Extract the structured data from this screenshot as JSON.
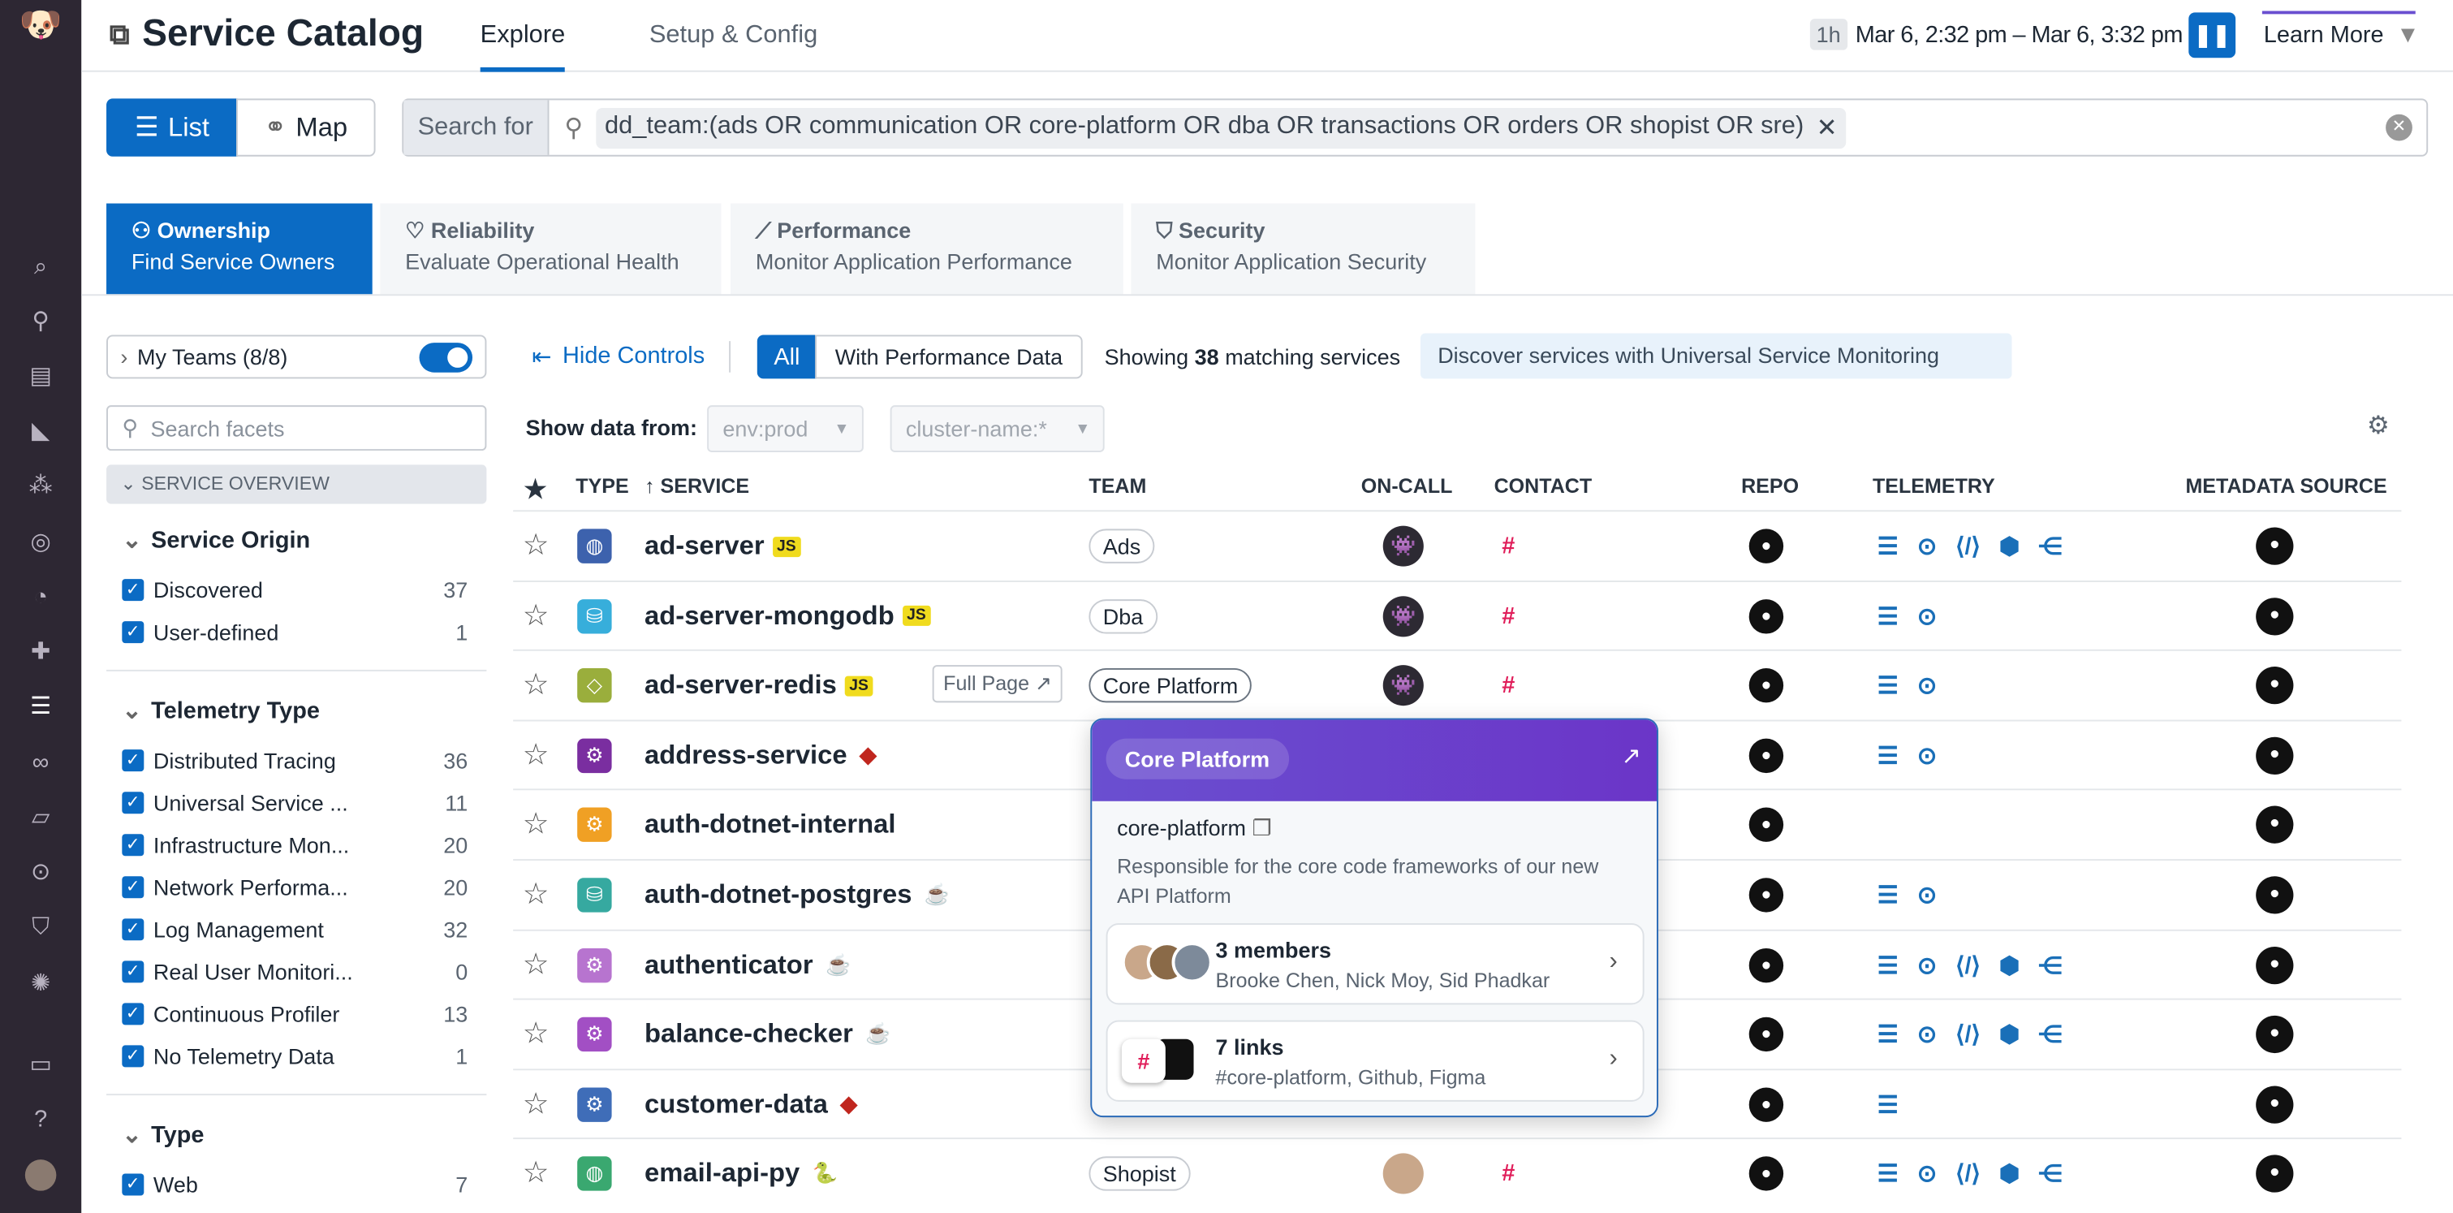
{
  "nav": {
    "icons": [
      "datadog-logo",
      "search-icon",
      "binoculars-icon",
      "list-icon",
      "chart-icon",
      "services-icon",
      "target-icon",
      "gauge-icon",
      "puzzle-icon",
      "traces-icon",
      "link-icon",
      "book-icon",
      "usm-icon",
      "shield-icon",
      "cog-icon",
      "chat-icon",
      "help-icon",
      "user-avatar"
    ]
  },
  "header": {
    "title": "Service Catalog",
    "tabs": [
      "Explore",
      "Setup & Config"
    ],
    "time_badge": "1h",
    "time_range": "Mar 6, 2:32 pm – Mar 6, 3:32 pm",
    "learn_more": "Learn More"
  },
  "view": {
    "list": "List",
    "map": "Map"
  },
  "search": {
    "label": "Search for",
    "query": "dd_team:(ads OR communication OR core-platform OR dba OR transactions OR orders OR shopist OR sre)"
  },
  "categories": [
    {
      "title": "Ownership",
      "subtitle": "Find Service Owners"
    },
    {
      "title": "Reliability",
      "subtitle": "Evaluate Operational Health"
    },
    {
      "title": "Performance",
      "subtitle": "Monitor Application Performance"
    },
    {
      "title": "Security",
      "subtitle": "Monitor Application Security"
    }
  ],
  "facets": {
    "my_teams": "My Teams (8/8)",
    "my_teams_on": true,
    "search_placeholder": "Search facets",
    "overview": "SERVICE OVERVIEW",
    "groups": [
      {
        "title": "Service Origin",
        "items": [
          {
            "label": "Discovered",
            "count": "37"
          },
          {
            "label": "User-defined",
            "count": "1"
          }
        ]
      },
      {
        "title": "Telemetry Type",
        "items": [
          {
            "label": "Distributed Tracing",
            "count": "36"
          },
          {
            "label": "Universal Service ...",
            "count": "11"
          },
          {
            "label": "Infrastructure Mon...",
            "count": "20"
          },
          {
            "label": "Network Performa...",
            "count": "20"
          },
          {
            "label": "Log Management",
            "count": "32"
          },
          {
            "label": "Real User Monitori...",
            "count": "0"
          },
          {
            "label": "Continuous Profiler",
            "count": "13"
          },
          {
            "label": "No Telemetry Data",
            "count": "1"
          }
        ]
      },
      {
        "title": "Type",
        "items": [
          {
            "label": "Web",
            "count": "7"
          }
        ]
      }
    ]
  },
  "controls": {
    "hide": "Hide Controls",
    "all": "All",
    "with_perf": "With Performance Data",
    "showing_pre": "Showing ",
    "showing_count": "38",
    "showing_post": " matching services",
    "discover": "Discover services with Universal Service Monitoring",
    "show_data_from": "Show data from:",
    "env": "env:prod",
    "cluster": "cluster-name:*"
  },
  "table": {
    "headers": [
      "TYPE",
      "SERVICE",
      "TEAM",
      "ON-CALL",
      "CONTACT",
      "REPO",
      "TELEMETRY",
      "METADATA SOURCE"
    ],
    "full_page": "Full Page",
    "rows": [
      {
        "name": "ad-server",
        "lang": "JS",
        "type_color": "#3d62ad",
        "type_icon": "globe",
        "team": "Ads",
        "oncall": true,
        "slack": true,
        "telemetry": 5
      },
      {
        "name": "ad-server-mongodb",
        "lang": "JS",
        "type_color": "#37aedb",
        "type_icon": "database",
        "team": "Dba",
        "oncall": true,
        "slack": true,
        "telemetry": 2
      },
      {
        "name": "ad-server-redis",
        "lang": "JS",
        "type_color": "#9aae3c",
        "type_icon": "cache",
        "team": "Core Platform",
        "oncall": true,
        "slack": true,
        "telemetry": 2
      },
      {
        "name": "address-service",
        "lang": "Ruby",
        "type_color": "#7a2ea0",
        "type_icon": "custom",
        "team": "",
        "telemetry": 2
      },
      {
        "name": "auth-dotnet-internal",
        "lang": "",
        "type_color": "#f0a024",
        "type_icon": "custom",
        "team": "",
        "telemetry": 0
      },
      {
        "name": "auth-dotnet-postgres",
        "lang": "Java",
        "type_color": "#36a9a0",
        "type_icon": "database",
        "team": "",
        "telemetry": 2
      },
      {
        "name": "authenticator",
        "lang": "Java",
        "type_color": "#b774cf",
        "type_icon": "custom",
        "team": "",
        "telemetry": 5
      },
      {
        "name": "balance-checker",
        "lang": "Java",
        "type_color": "#a24fc4",
        "type_icon": "custom",
        "team": "",
        "telemetry": 5
      },
      {
        "name": "customer-data",
        "lang": "Ruby",
        "type_color": "#3f6db8",
        "type_icon": "custom",
        "team": "",
        "telemetry": 1
      },
      {
        "name": "email-api-py",
        "lang": "Python",
        "type_color": "#3aa870",
        "type_icon": "globe",
        "team": "Shopist",
        "oncall": true,
        "slack": true,
        "telemetry": 5
      }
    ]
  },
  "popover": {
    "team": "Core Platform",
    "handle": "core-platform",
    "description": "Responsible for the core code frameworks of our new API Platform",
    "members_title": "3 members",
    "members": "Brooke Chen, Nick Moy, Sid Phadkar",
    "links_title": "7 links",
    "links": "#core-platform, Github, Figma"
  }
}
